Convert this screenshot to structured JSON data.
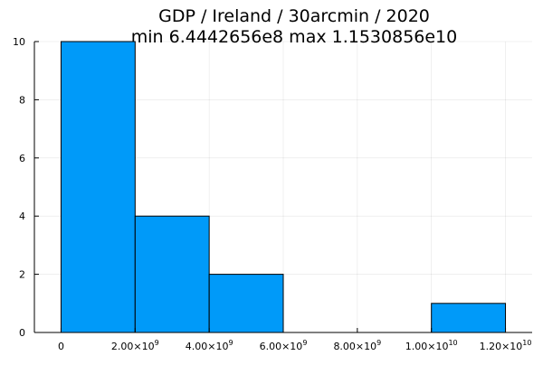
{
  "chart_data": {
    "type": "bar",
    "title_lines": [
      "GDP / Ireland / 30arcmin / 2020",
      "min 6.4442656e8  max 1.1530856e10"
    ],
    "xlabel": "",
    "ylabel": "",
    "bins": [
      {
        "x0": 0,
        "x1": 2000000000.0,
        "count": 10
      },
      {
        "x0": 2000000000.0,
        "x1": 4000000000.0,
        "count": 4
      },
      {
        "x0": 4000000000.0,
        "x1": 6000000000.0,
        "count": 2
      },
      {
        "x0": 6000000000.0,
        "x1": 8000000000.0,
        "count": 0
      },
      {
        "x0": 8000000000.0,
        "x1": 10000000000.0,
        "count": 0
      },
      {
        "x0": 10000000000.0,
        "x1": 12000000000.0,
        "count": 1
      }
    ],
    "xlim": [
      -720000000.0,
      12720000000.0
    ],
    "ylim": [
      0,
      10
    ],
    "x_ticks": [
      {
        "value": 0,
        "mantissa": "0",
        "exp": ""
      },
      {
        "value": 2000000000.0,
        "mantissa": "2.00×10",
        "exp": "9"
      },
      {
        "value": 4000000000.0,
        "mantissa": "4.00×10",
        "exp": "9"
      },
      {
        "value": 6000000000.0,
        "mantissa": "6.00×10",
        "exp": "9"
      },
      {
        "value": 8000000000.0,
        "mantissa": "8.00×10",
        "exp": "9"
      },
      {
        "value": 10000000000.0,
        "mantissa": "1.00×10",
        "exp": "10"
      },
      {
        "value": 12000000000.0,
        "mantissa": "1.20×10",
        "exp": "10"
      }
    ],
    "y_ticks": [
      {
        "value": 0,
        "label": "0"
      },
      {
        "value": 2,
        "label": "2"
      },
      {
        "value": 4,
        "label": "4"
      },
      {
        "value": 6,
        "label": "6"
      },
      {
        "value": 8,
        "label": "8"
      },
      {
        "value": 10,
        "label": "10"
      }
    ],
    "grid": true,
    "legend": "none",
    "bar_color": "#009af9",
    "edge_color": "#000000"
  }
}
